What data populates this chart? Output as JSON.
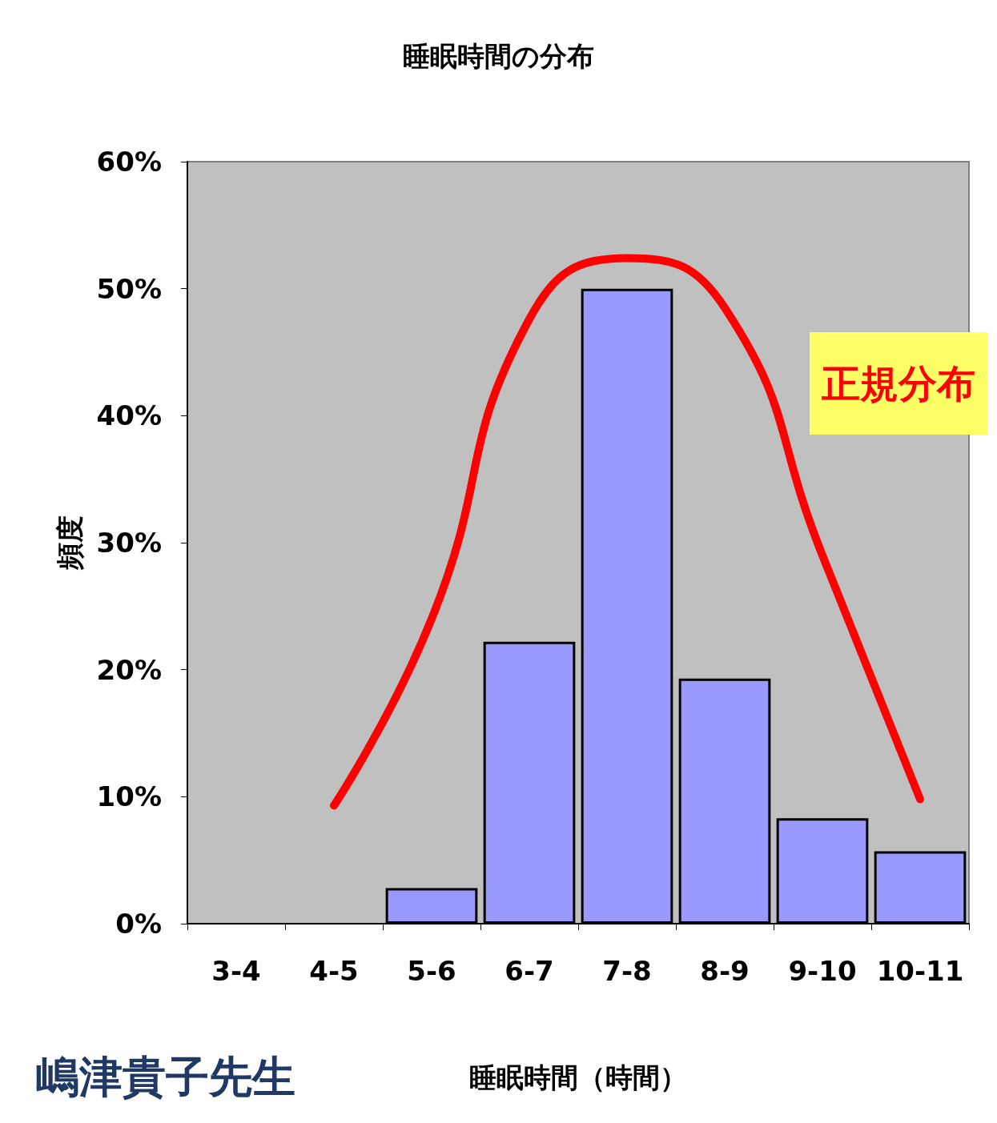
{
  "chart_data": {
    "type": "bar",
    "title": "睡眠時間の分布",
    "xlabel": "睡眠時間（時間）",
    "ylabel": "頻度",
    "categories": [
      "3-4",
      "4-5",
      "5-6",
      "6-7",
      "7-8",
      "8-9",
      "9-10",
      "10-11"
    ],
    "series": [
      {
        "color": "#9999ff",
        "values": [
          null,
          null,
          2.8,
          22.2,
          50,
          19.3,
          8.3,
          5.7
        ]
      },
      {
        "type": "line",
        "color": "#ff0000",
        "values": [
          null,
          9.3,
          24,
          47.6,
          52.4,
          48.5,
          29,
          9.8
        ]
      }
    ],
    "ylim": [
      0,
      60
    ],
    "yticks": [
      {
        "value": 0,
        "label": "0%"
      },
      {
        "value": 10,
        "label": "10%"
      },
      {
        "value": 20,
        "label": "20%"
      },
      {
        "value": 30,
        "label": "30%"
      },
      {
        "value": 40,
        "label": "40%"
      },
      {
        "value": 50,
        "label": "50%"
      },
      {
        "value": 60,
        "label": "60%"
      }
    ],
    "annotations": [
      "正規分布",
      "嶋津貴子先生"
    ],
    "grid": false,
    "marker": "none",
    "line_style": "solid"
  }
}
